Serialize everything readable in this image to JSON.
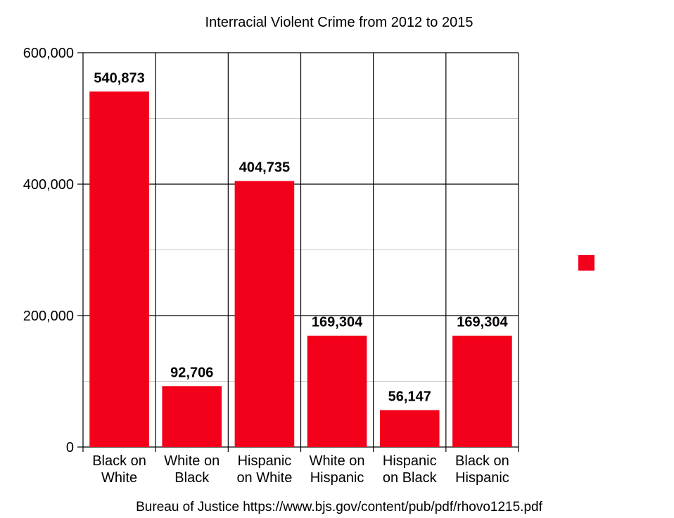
{
  "chart_data": {
    "type": "bar",
    "title": "Interracial Violent Crime from 2012 to 2015",
    "source": "Bureau of Justice https://www.bjs.gov/content/pub/pdf/rhovo1215.pdf",
    "categories": [
      "Black on\nWhite",
      "White on\nBlack",
      "Hispanic\non White",
      "White on\nHispanic",
      "Hispanic\non Black",
      "Black on\nHispanic"
    ],
    "values": [
      540873,
      92706,
      404735,
      169304,
      56147,
      169304
    ],
    "value_labels": [
      "540,873",
      "92,706",
      "404,735",
      "169,304",
      "56,147",
      "169,304"
    ],
    "color": "#f3001a",
    "ylim": [
      0,
      600000
    ],
    "yticks": [
      0,
      {
        "value": 200000,
        "label": "200,000"
      },
      {
        "value": 400000,
        "label": "400,000"
      },
      {
        "value": 600000,
        "label": "600,000"
      }
    ],
    "minor_grid": [
      100000,
      300000,
      500000
    ],
    "grid": true
  }
}
